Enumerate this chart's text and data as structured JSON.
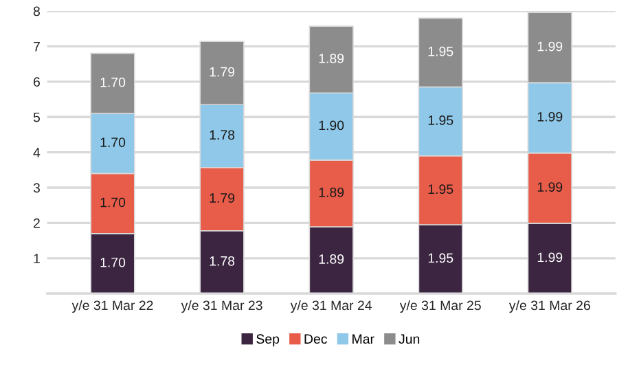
{
  "chart_data": {
    "type": "bar",
    "stacked": true,
    "categories": [
      "y/e 31 Mar 22",
      "y/e 31 Mar 23",
      "y/e 31 Mar 24",
      "y/e 31 Mar 25",
      "y/e 31 Mar 26"
    ],
    "series": [
      {
        "name": "Sep",
        "color": "#3b2540",
        "values": [
          1.7,
          1.78,
          1.89,
          1.95,
          1.99
        ],
        "value_labels": [
          "1.70",
          "1.78",
          "1.89",
          "1.95",
          "1.99"
        ]
      },
      {
        "name": "Dec",
        "color": "#e85c4a",
        "values": [
          1.7,
          1.79,
          1.89,
          1.95,
          1.99
        ],
        "value_labels": [
          "1.70",
          "1.79",
          "1.89",
          "1.95",
          "1.99"
        ]
      },
      {
        "name": "Mar",
        "color": "#8fc8e8",
        "values": [
          1.7,
          1.78,
          1.9,
          1.95,
          1.99
        ],
        "value_labels": [
          "1.70",
          "1.78",
          "1.90",
          "1.95",
          "1.99"
        ]
      },
      {
        "name": "Jun",
        "color": "#8c8c8c",
        "values": [
          1.7,
          1.79,
          1.89,
          1.95,
          1.99
        ],
        "value_labels": [
          "1.70",
          "1.79",
          "1.89",
          "1.95",
          "1.99"
        ]
      }
    ],
    "ylim": [
      0,
      8
    ],
    "yticks": [
      {
        "value": 0,
        "label": null
      },
      1,
      2,
      3,
      4,
      5,
      6,
      7,
      8
    ],
    "grid": "y",
    "legend": "bottom"
  }
}
